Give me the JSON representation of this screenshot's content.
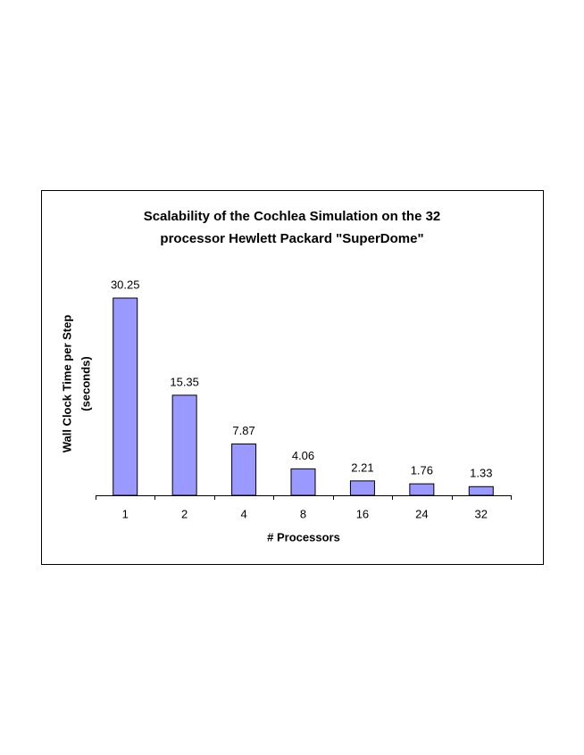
{
  "chart_data": {
    "type": "bar",
    "title": [
      "Scalability of the Cochlea Simulation on the 32",
      "processor Hewlett Packard \"SuperDome\""
    ],
    "x_label": "# Processors",
    "y_label": [
      "Wall Clock Time per Step",
      "(seconds)"
    ],
    "categories": [
      "1",
      "2",
      "4",
      "8",
      "16",
      "24",
      "32"
    ],
    "values": [
      30.25,
      15.35,
      7.87,
      4.06,
      2.21,
      1.76,
      1.33
    ],
    "color": "#9999ff"
  }
}
